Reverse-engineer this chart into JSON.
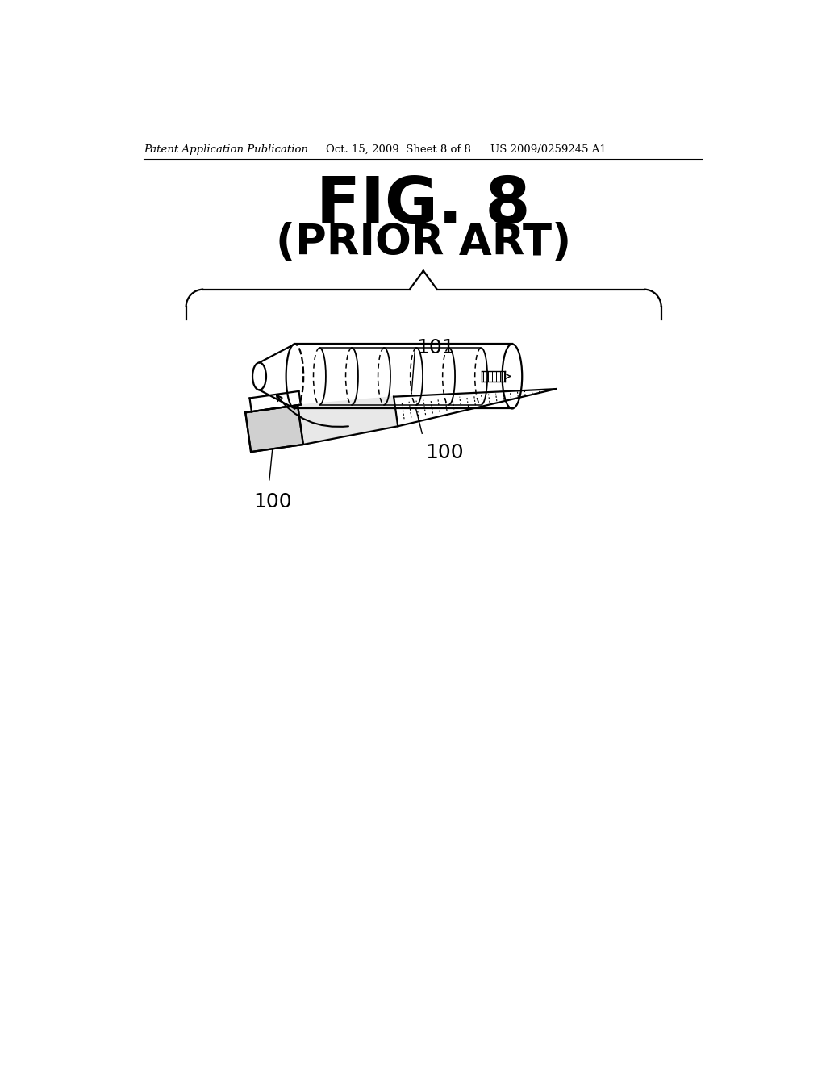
{
  "bg_color": "#ffffff",
  "header_left": "Patent Application Publication",
  "header_mid": "Oct. 15, 2009  Sheet 8 of 8",
  "header_right": "US 2009/0259245 A1",
  "fig_title": "FIG. 8",
  "fig_subtitle": "(PRIOR ART)",
  "label_100_top": "100",
  "label_101": "101",
  "label_100_bot": "100"
}
